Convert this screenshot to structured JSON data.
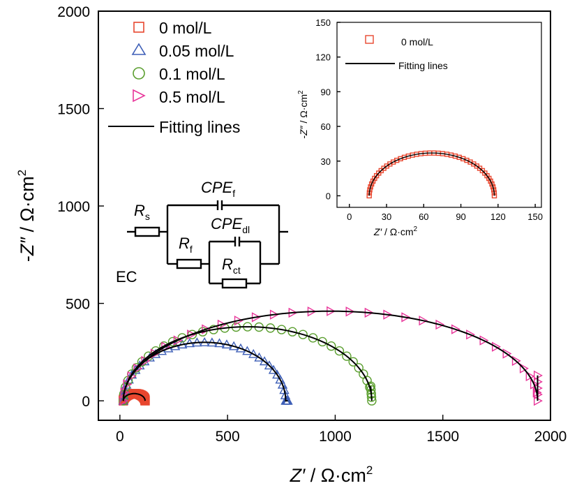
{
  "chart_data": [
    {
      "type": "scatter",
      "xlabel": "Z′ / Ω·cm²",
      "ylabel": "-Z″ / Ω·cm²",
      "xlim": [
        -100,
        2000
      ],
      "ylim": [
        -100,
        2000
      ],
      "xticks": [
        "0",
        "500",
        "1000",
        "1500",
        "2000"
      ],
      "yticks": [
        "0",
        "500",
        "1000",
        "1500",
        "2000"
      ],
      "legend_position": "top-left",
      "series": [
        {
          "name": "0 mol/L",
          "marker": "square",
          "color": "#e8472f",
          "arc": {
            "x_start": 16,
            "x_end": 117,
            "peak": 37
          }
        },
        {
          "name": "0.05 mol/L",
          "marker": "triangle-up",
          "color": "#3e5fb7",
          "arc": {
            "x_start": 16,
            "x_end": 770,
            "peak": 300,
            "tail_end": [
              780,
              0
            ]
          }
        },
        {
          "name": "0.1 mol/L",
          "marker": "circle",
          "color": "#5a9e2e",
          "arc": {
            "x_start": 16,
            "x_end": 1170,
            "peak": 380,
            "tail_end": [
              1165,
              75
            ]
          }
        },
        {
          "name": "0.5 mol/L",
          "marker": "triangle-right",
          "color": "#e8369a",
          "arc": {
            "x_start": 16,
            "x_end": 1940,
            "peak": 460,
            "tail_end": [
              1940,
              130
            ]
          }
        }
      ],
      "fit_line": {
        "name": "Fitting lines",
        "color": "#000000"
      },
      "equivalent_circuit": {
        "label": "EC",
        "elements": [
          {
            "base": "R",
            "sub": "s"
          },
          {
            "base": "CPE",
            "sub": "f"
          },
          {
            "base": "R",
            "sub": "f"
          },
          {
            "base": "CPE",
            "sub": "dl"
          },
          {
            "base": "R",
            "sub": "ct"
          }
        ]
      }
    },
    {
      "type": "scatter",
      "inset": true,
      "xlabel": "Z′ / Ω·cm²",
      "ylabel": "-Z″ / Ω·cm²",
      "xlim": [
        -10,
        155
      ],
      "ylim": [
        -10,
        150
      ],
      "xticks": [
        "0",
        "30",
        "60",
        "90",
        "120",
        "150"
      ],
      "yticks": [
        "0",
        "30",
        "60",
        "90",
        "120",
        "150"
      ],
      "series": [
        {
          "name": "0 mol/L",
          "marker": "square",
          "color": "#e8472f",
          "arc": {
            "x_start": 16,
            "x_end": 117,
            "peak": 37
          }
        }
      ],
      "fit_line": {
        "name": "Fitting lines",
        "color": "#000000"
      }
    }
  ]
}
